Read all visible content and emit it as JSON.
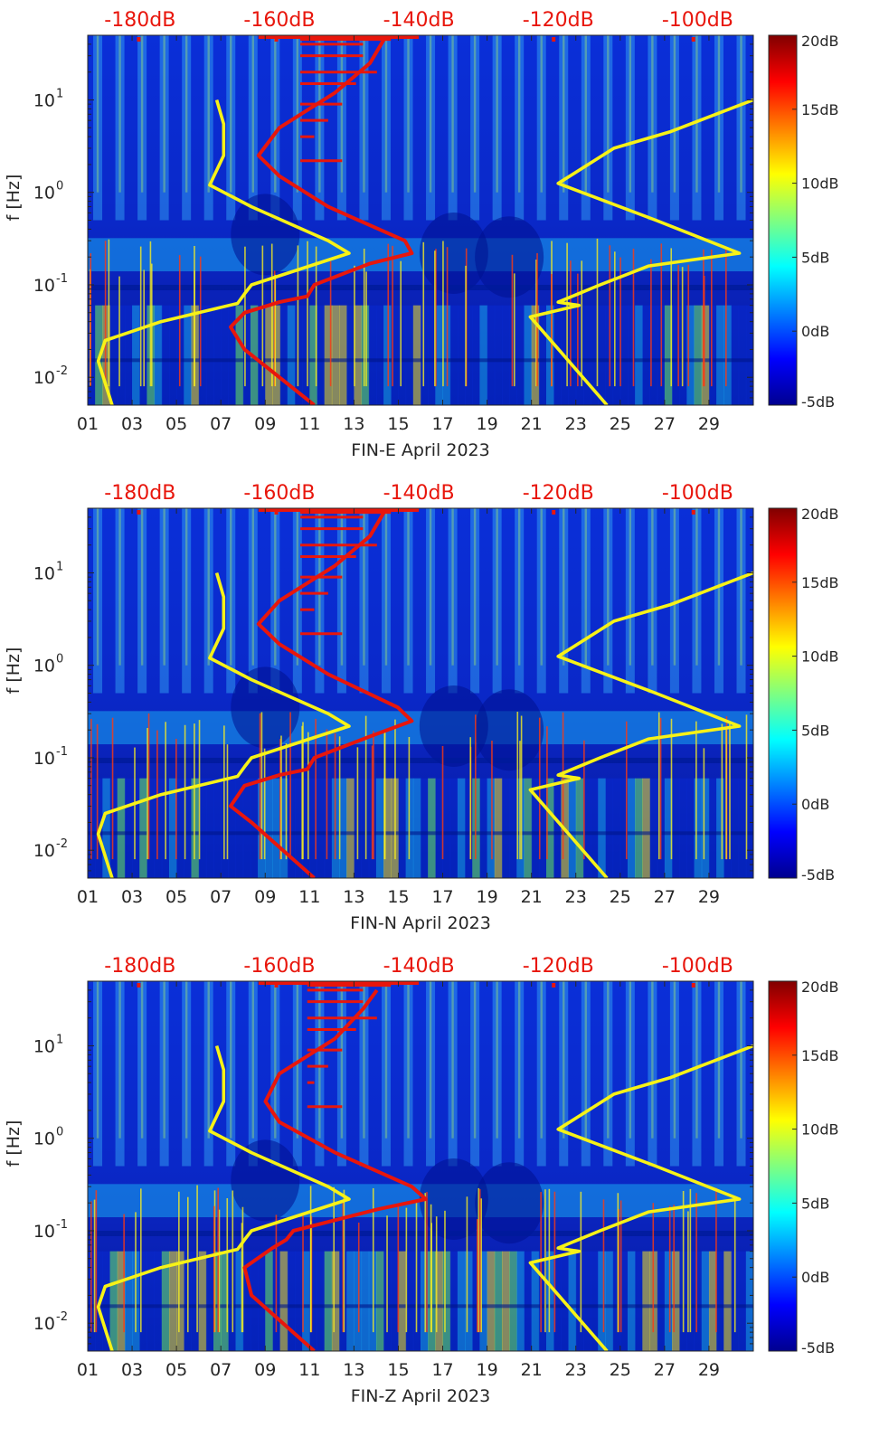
{
  "chart_data": [
    {
      "type": "heatmap",
      "station": "FIN-E",
      "title": "",
      "xlabel": "FIN-E April 2023",
      "ylabel": "f [Hz]",
      "x_days": [
        1,
        31
      ],
      "ylim_hz": [
        0.005,
        50
      ],
      "x_ticks": [
        "01",
        "03",
        "05",
        "07",
        "09",
        "11",
        "13",
        "15",
        "17",
        "19",
        "21",
        "23",
        "25",
        "27",
        "29"
      ],
      "y_ticks": [
        {
          "base": "10",
          "exp": "1"
        },
        {
          "base": "10",
          "exp": "0"
        },
        {
          "base": "10",
          "exp": "-1"
        },
        {
          "base": "10",
          "exp": "-2"
        }
      ],
      "top_axis_labels": [
        "-180dB",
        "-160dB",
        "-140dB",
        "-120dB",
        "-100dB"
      ],
      "top_axis_db": [
        -180,
        -160,
        -140,
        -120,
        -100
      ],
      "top_axis_range_db": [
        -187.5,
        -92
      ],
      "colorbar": {
        "ticks": [
          "20dB",
          "15dB",
          "10dB",
          "5dB",
          "0dB",
          "-5dB"
        ],
        "range_db": [
          -5,
          20
        ],
        "colormap": "jet"
      },
      "series": [
        {
          "name": "low-noise-model",
          "color": "#f7f217",
          "style": "line",
          "points": [
            [
              -184,
              0.005
            ],
            [
              -186,
              0.015
            ],
            [
              -185,
              0.025
            ],
            [
              -177,
              0.04
            ],
            [
              -166,
              0.063
            ],
            [
              -165,
              0.08
            ],
            [
              -164,
              0.1
            ],
            [
              -150,
              0.22
            ],
            [
              -153,
              0.3
            ],
            [
              -164,
              0.7
            ],
            [
              -170,
              1.2
            ],
            [
              -168,
              2.5
            ],
            [
              -168,
              5.5
            ],
            [
              -169,
              10
            ]
          ]
        },
        {
          "name": "high-noise-model",
          "color": "#f7f217",
          "style": "line",
          "points": [
            [
              -113,
              0.005
            ],
            [
              -124,
              0.045
            ],
            [
              -117,
              0.06
            ],
            [
              -120,
              0.065
            ],
            [
              -114,
              0.1
            ],
            [
              -107,
              0.16
            ],
            [
              -94,
              0.22
            ],
            [
              -106,
              0.5
            ],
            [
              -120,
              1.25
            ],
            [
              -112,
              3
            ],
            [
              -104,
              4.5
            ],
            [
              -92,
              10
            ]
          ]
        },
        {
          "name": "station-median-psd",
          "color": "#e8160c",
          "style": "line",
          "points": [
            [
              -155,
              0.005
            ],
            [
              -165,
              0.02
            ],
            [
              -167,
              0.035
            ],
            [
              -165,
              0.05
            ],
            [
              -160,
              0.065
            ],
            [
              -156,
              0.075
            ],
            [
              -155,
              0.1
            ],
            [
              -147,
              0.17
            ],
            [
              -141,
              0.22
            ],
            [
              -142,
              0.3
            ],
            [
              -153,
              0.7
            ],
            [
              -160,
              1.5
            ],
            [
              -163,
              2.5
            ],
            [
              -160,
              5
            ],
            [
              -152,
              12
            ],
            [
              -147,
              25
            ],
            [
              -145,
              45
            ]
          ]
        }
      ]
    },
    {
      "type": "heatmap",
      "station": "FIN-N",
      "title": "",
      "xlabel": "FIN-N April 2023",
      "ylabel": "f [Hz]",
      "x_days": [
        1,
        31
      ],
      "ylim_hz": [
        0.005,
        50
      ],
      "x_ticks": [
        "01",
        "03",
        "05",
        "07",
        "09",
        "11",
        "13",
        "15",
        "17",
        "19",
        "21",
        "23",
        "25",
        "27",
        "29"
      ],
      "y_ticks": [
        {
          "base": "10",
          "exp": "1"
        },
        {
          "base": "10",
          "exp": "0"
        },
        {
          "base": "10",
          "exp": "-1"
        },
        {
          "base": "10",
          "exp": "-2"
        }
      ],
      "top_axis_labels": [
        "-180dB",
        "-160dB",
        "-140dB",
        "-120dB",
        "-100dB"
      ],
      "top_axis_db": [
        -180,
        -160,
        -140,
        -120,
        -100
      ],
      "top_axis_range_db": [
        -187.5,
        -92
      ],
      "colorbar": {
        "ticks": [
          "20dB",
          "15dB",
          "10dB",
          "5dB",
          "0dB",
          "-5dB"
        ],
        "range_db": [
          -5,
          20
        ],
        "colormap": "jet"
      },
      "series": [
        {
          "name": "low-noise-model",
          "color": "#f7f217",
          "style": "line",
          "points": [
            [
              -184,
              0.005
            ],
            [
              -186,
              0.015
            ],
            [
              -185,
              0.025
            ],
            [
              -177,
              0.04
            ],
            [
              -166,
              0.063
            ],
            [
              -165,
              0.08
            ],
            [
              -164,
              0.1
            ],
            [
              -150,
              0.22
            ],
            [
              -153,
              0.3
            ],
            [
              -164,
              0.7
            ],
            [
              -170,
              1.2
            ],
            [
              -168,
              2.5
            ],
            [
              -168,
              5.5
            ],
            [
              -169,
              10
            ]
          ]
        },
        {
          "name": "high-noise-model",
          "color": "#f7f217",
          "style": "line",
          "points": [
            [
              -113,
              0.005
            ],
            [
              -124,
              0.045
            ],
            [
              -117,
              0.06
            ],
            [
              -120,
              0.065
            ],
            [
              -114,
              0.1
            ],
            [
              -107,
              0.16
            ],
            [
              -94,
              0.22
            ],
            [
              -106,
              0.5
            ],
            [
              -120,
              1.25
            ],
            [
              -112,
              3
            ],
            [
              -104,
              4.5
            ],
            [
              -92,
              10
            ]
          ]
        },
        {
          "name": "station-median-psd",
          "color": "#e8160c",
          "style": "line",
          "points": [
            [
              -155,
              0.005
            ],
            [
              -164,
              0.02
            ],
            [
              -167,
              0.03
            ],
            [
              -165,
              0.05
            ],
            [
              -160,
              0.065
            ],
            [
              -156,
              0.075
            ],
            [
              -155,
              0.1
            ],
            [
              -147,
              0.17
            ],
            [
              -141,
              0.25
            ],
            [
              -143,
              0.35
            ],
            [
              -153,
              0.8
            ],
            [
              -160,
              1.7
            ],
            [
              -163,
              2.8
            ],
            [
              -160,
              5
            ],
            [
              -152,
              12
            ],
            [
              -147,
              25
            ],
            [
              -145,
              45
            ]
          ]
        }
      ]
    },
    {
      "type": "heatmap",
      "station": "FIN-Z",
      "title": "",
      "xlabel": "FIN-Z April 2023",
      "ylabel": "f [Hz]",
      "x_days": [
        1,
        31
      ],
      "ylim_hz": [
        0.005,
        50
      ],
      "x_ticks": [
        "01",
        "03",
        "05",
        "07",
        "09",
        "11",
        "13",
        "15",
        "17",
        "19",
        "21",
        "23",
        "25",
        "27",
        "29"
      ],
      "y_ticks": [
        {
          "base": "10",
          "exp": "1"
        },
        {
          "base": "10",
          "exp": "0"
        },
        {
          "base": "10",
          "exp": "-1"
        },
        {
          "base": "10",
          "exp": "-2"
        }
      ],
      "top_axis_labels": [
        "-180dB",
        "-160dB",
        "-140dB",
        "-120dB",
        "-100dB"
      ],
      "top_axis_db": [
        -180,
        -160,
        -140,
        -120,
        -100
      ],
      "top_axis_range_db": [
        -187.5,
        -92
      ],
      "colorbar": {
        "ticks": [
          "20dB",
          "15dB",
          "10dB",
          "5dB",
          "0dB",
          "-5dB"
        ],
        "range_db": [
          -5,
          20
        ],
        "colormap": "jet"
      },
      "series": [
        {
          "name": "low-noise-model",
          "color": "#f7f217",
          "style": "line",
          "points": [
            [
              -184,
              0.005
            ],
            [
              -186,
              0.015
            ],
            [
              -185,
              0.025
            ],
            [
              -177,
              0.04
            ],
            [
              -166,
              0.063
            ],
            [
              -165,
              0.08
            ],
            [
              -164,
              0.1
            ],
            [
              -150,
              0.22
            ],
            [
              -153,
              0.3
            ],
            [
              -164,
              0.7
            ],
            [
              -170,
              1.2
            ],
            [
              -168,
              2.5
            ],
            [
              -168,
              5.5
            ],
            [
              -169,
              10
            ]
          ]
        },
        {
          "name": "high-noise-model",
          "color": "#f7f217",
          "style": "line",
          "points": [
            [
              -113,
              0.005
            ],
            [
              -124,
              0.045
            ],
            [
              -117,
              0.06
            ],
            [
              -120,
              0.065
            ],
            [
              -114,
              0.1
            ],
            [
              -107,
              0.16
            ],
            [
              -94,
              0.22
            ],
            [
              -106,
              0.5
            ],
            [
              -120,
              1.25
            ],
            [
              -112,
              3
            ],
            [
              -104,
              4.5
            ],
            [
              -92,
              10
            ]
          ]
        },
        {
          "name": "station-median-psd",
          "color": "#e8160c",
          "style": "line",
          "points": [
            [
              -155,
              0.005
            ],
            [
              -164,
              0.02
            ],
            [
              -165,
              0.04
            ],
            [
              -161,
              0.065
            ],
            [
              -159,
              0.08
            ],
            [
              -158,
              0.1
            ],
            [
              -146,
              0.17
            ],
            [
              -139,
              0.22
            ],
            [
              -141,
              0.3
            ],
            [
              -152,
              0.7
            ],
            [
              -160,
              1.5
            ],
            [
              -162,
              2.5
            ],
            [
              -160,
              5
            ],
            [
              -152,
              12
            ],
            [
              -148,
              25
            ],
            [
              -146,
              40
            ]
          ]
        }
      ]
    }
  ]
}
